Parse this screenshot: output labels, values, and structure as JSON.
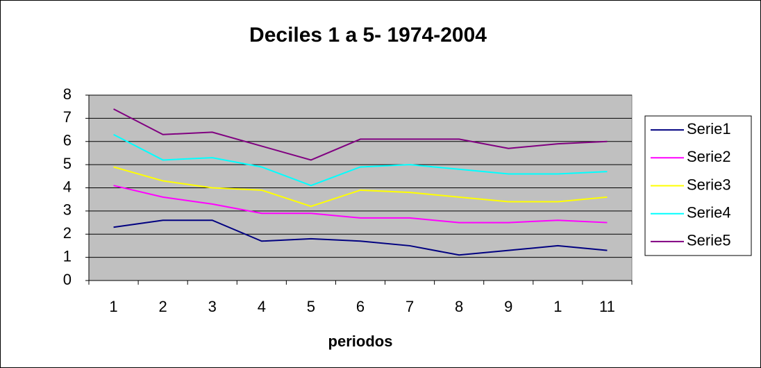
{
  "chart_data": {
    "type": "line",
    "title": "Deciles 1 a 5- 1974-2004",
    "x_label": "periodos",
    "categories": [
      "1",
      "2",
      "3",
      "4",
      "5",
      "6",
      "7",
      "8",
      "9",
      "1",
      "11"
    ],
    "series": [
      {
        "name": "Serie1",
        "color": "#000080",
        "values": [
          2.3,
          2.6,
          2.6,
          1.7,
          1.8,
          1.7,
          1.5,
          1.1,
          1.3,
          1.5,
          1.3
        ]
      },
      {
        "name": "Serie2",
        "color": "#ff00ff",
        "values": [
          4.1,
          3.6,
          3.3,
          2.9,
          2.9,
          2.7,
          2.7,
          2.5,
          2.5,
          2.6,
          2.5
        ]
      },
      {
        "name": "Serie3",
        "color": "#ffff00",
        "values": [
          4.9,
          4.3,
          4.0,
          3.9,
          3.2,
          3.9,
          3.8,
          3.6,
          3.4,
          3.4,
          3.6
        ]
      },
      {
        "name": "Serie4",
        "color": "#00ffff",
        "values": [
          6.3,
          5.2,
          5.3,
          4.9,
          4.1,
          4.9,
          5.0,
          4.8,
          4.6,
          4.6,
          4.7
        ]
      },
      {
        "name": "Serie5",
        "color": "#800080",
        "values": [
          7.4,
          6.3,
          6.4,
          5.8,
          5.2,
          6.1,
          6.1,
          6.1,
          5.7,
          5.9,
          6.0
        ]
      }
    ],
    "ylim": [
      0,
      8
    ],
    "yticks": [
      0,
      1,
      2,
      3,
      4,
      5,
      6,
      7,
      8
    ],
    "grid": true,
    "legend": "right",
    "plot_background": "#c0c0c0"
  }
}
